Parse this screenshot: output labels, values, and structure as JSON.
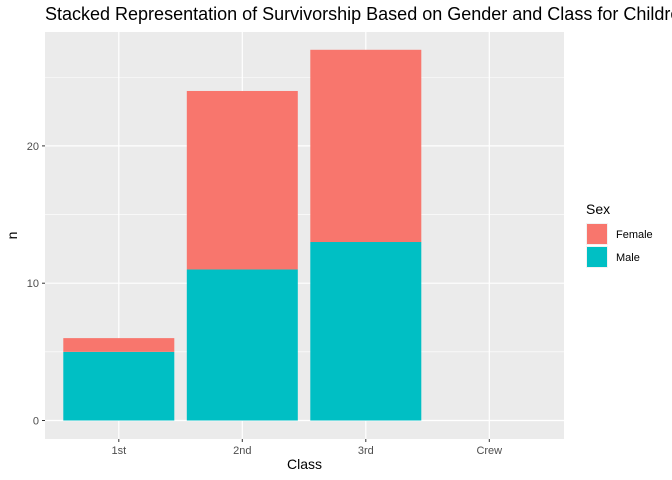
{
  "chart_data": {
    "type": "bar",
    "stacked": true,
    "title": "Stacked Representation of Survivorship Based on Gender and Class for Children",
    "xlabel": "Class",
    "ylabel": "n",
    "categories": [
      "1st",
      "2nd",
      "3rd",
      "Crew"
    ],
    "series": [
      {
        "name": "Male",
        "color": "#00BFC4",
        "values": [
          5,
          11,
          13,
          0
        ]
      },
      {
        "name": "Female",
        "color": "#F8766D",
        "values": [
          1,
          13,
          14,
          0
        ]
      }
    ],
    "ylim": [
      0,
      28
    ],
    "yticks": [
      0,
      10,
      20
    ],
    "grid": true,
    "legend": {
      "title": "Sex",
      "position": "right",
      "entries": [
        {
          "label": "Female",
          "color": "#F8766D"
        },
        {
          "label": "Male",
          "color": "#00BFC4"
        }
      ]
    },
    "panel_background": "#EBEBEB",
    "grid_color": "#FFFFFF"
  }
}
